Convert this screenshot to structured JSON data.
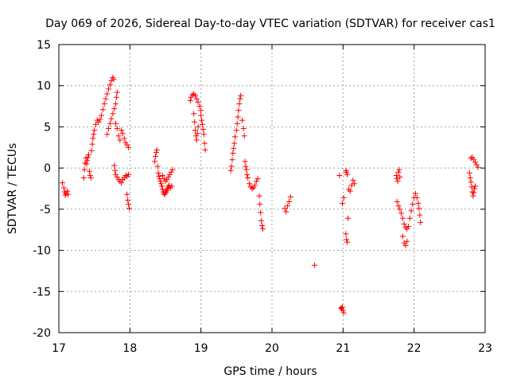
{
  "chart_data": {
    "type": "scatter",
    "title": "Day 069 of 2026, Sidereal Day-to-day VTEC variation (SDTVAR) for receiver cas1",
    "xlabel": "GPS time / hours",
    "ylabel": "SDTVAR / TECUs",
    "xlim": [
      17,
      23
    ],
    "ylim": [
      -20,
      15
    ],
    "xticks": [
      17,
      18,
      19,
      20,
      21,
      22,
      23
    ],
    "yticks": [
      15,
      10,
      5,
      0,
      -5,
      -10,
      -15,
      -20
    ],
    "grid": true,
    "marker": "+",
    "color": "#ff0000",
    "series": [
      {
        "name": "SDTVAR",
        "points": [
          [
            17.05,
            -1.8
          ],
          [
            17.07,
            -2.4
          ],
          [
            17.08,
            -2.9
          ],
          [
            17.09,
            -3.3
          ],
          [
            17.1,
            -3.1
          ],
          [
            17.12,
            -2.8
          ],
          [
            17.13,
            -3.2
          ],
          [
            17.35,
            -1.2
          ],
          [
            17.36,
            -0.2
          ],
          [
            17.37,
            0.6
          ],
          [
            17.38,
            1.2
          ],
          [
            17.39,
            0.5
          ],
          [
            17.4,
            0.9
          ],
          [
            17.41,
            1.3
          ],
          [
            17.42,
            1.6
          ],
          [
            17.43,
            -0.4
          ],
          [
            17.44,
            -0.9
          ],
          [
            17.45,
            -1.2
          ],
          [
            17.46,
            2.1
          ],
          [
            17.47,
            2.9
          ],
          [
            17.48,
            3.6
          ],
          [
            17.49,
            4.1
          ],
          [
            17.5,
            4.6
          ],
          [
            17.52,
            5.3
          ],
          [
            17.54,
            5.8
          ],
          [
            17.56,
            5.6
          ],
          [
            17.58,
            5.9
          ],
          [
            17.6,
            6.4
          ],
          [
            17.62,
            7.1
          ],
          [
            17.64,
            7.8
          ],
          [
            17.66,
            8.4
          ],
          [
            17.68,
            9.0
          ],
          [
            17.7,
            9.6
          ],
          [
            17.72,
            10.1
          ],
          [
            17.74,
            10.6
          ],
          [
            17.76,
            11.0
          ],
          [
            17.77,
            10.8
          ],
          [
            17.68,
            4.1
          ],
          [
            17.7,
            4.8
          ],
          [
            17.72,
            5.4
          ],
          [
            17.74,
            6.0
          ],
          [
            17.76,
            6.6
          ],
          [
            17.78,
            7.2
          ],
          [
            17.8,
            7.8
          ],
          [
            17.81,
            8.6
          ],
          [
            17.82,
            9.2
          ],
          [
            17.78,
            0.3
          ],
          [
            17.79,
            -0.3
          ],
          [
            17.8,
            -0.8
          ],
          [
            17.82,
            -1.1
          ],
          [
            17.84,
            -1.4
          ],
          [
            17.86,
            -1.6
          ],
          [
            17.88,
            -1.8
          ],
          [
            17.9,
            -1.4
          ],
          [
            17.92,
            -1.2
          ],
          [
            17.94,
            -0.9
          ],
          [
            17.96,
            -1.0
          ],
          [
            17.98,
            -0.8
          ],
          [
            17.8,
            5.4
          ],
          [
            17.82,
            4.8
          ],
          [
            17.84,
            3.9
          ],
          [
            17.86,
            3.4
          ],
          [
            17.88,
            4.6
          ],
          [
            17.9,
            4.2
          ],
          [
            17.92,
            3.6
          ],
          [
            17.94,
            3.1
          ],
          [
            17.96,
            2.8
          ],
          [
            17.98,
            2.5
          ],
          [
            17.96,
            -3.2
          ],
          [
            17.97,
            -3.9
          ],
          [
            17.98,
            -4.4
          ],
          [
            17.99,
            -4.9
          ],
          [
            18.35,
            0.8
          ],
          [
            18.36,
            1.4
          ],
          [
            18.37,
            1.9
          ],
          [
            18.38,
            2.2
          ],
          [
            18.39,
            0.2
          ],
          [
            18.4,
            -0.6
          ],
          [
            18.41,
            -1.0
          ],
          [
            18.42,
            -1.3
          ],
          [
            18.43,
            -1.6
          ],
          [
            18.44,
            -1.9
          ],
          [
            18.45,
            -2.2
          ],
          [
            18.46,
            -2.6
          ],
          [
            18.47,
            -2.9
          ],
          [
            18.48,
            -3.1
          ],
          [
            18.49,
            -3.2
          ],
          [
            18.5,
            -3.0
          ],
          [
            18.51,
            -2.9
          ],
          [
            18.52,
            -2.7
          ],
          [
            18.53,
            -2.5
          ],
          [
            18.54,
            -2.3
          ],
          [
            18.55,
            -2.1
          ],
          [
            18.57,
            -2.4
          ],
          [
            18.59,
            -2.2
          ],
          [
            18.46,
            -0.9
          ],
          [
            18.48,
            -1.3
          ],
          [
            18.5,
            -1.6
          ],
          [
            18.52,
            -1.4
          ],
          [
            18.54,
            -1.1
          ],
          [
            18.56,
            -0.8
          ],
          [
            18.58,
            -0.5
          ],
          [
            18.6,
            -0.2
          ],
          [
            18.85,
            8.2
          ],
          [
            18.86,
            8.6
          ],
          [
            18.88,
            8.9
          ],
          [
            18.9,
            9.0
          ],
          [
            18.92,
            8.8
          ],
          [
            18.94,
            8.4
          ],
          [
            18.96,
            8.0
          ],
          [
            18.98,
            7.5
          ],
          [
            19.0,
            7.0
          ],
          [
            18.9,
            6.6
          ],
          [
            18.91,
            5.6
          ],
          [
            18.92,
            4.6
          ],
          [
            18.93,
            3.9
          ],
          [
            18.94,
            3.4
          ],
          [
            18.95,
            4.2
          ],
          [
            18.96,
            5.0
          ],
          [
            19.0,
            6.4
          ],
          [
            19.01,
            5.8
          ],
          [
            19.02,
            5.3
          ],
          [
            19.03,
            4.7
          ],
          [
            19.04,
            4.1
          ],
          [
            19.05,
            3.0
          ],
          [
            19.06,
            2.2
          ],
          [
            19.42,
            -0.3
          ],
          [
            19.43,
            0.2
          ],
          [
            19.44,
            1.0
          ],
          [
            19.45,
            1.8
          ],
          [
            19.46,
            2.4
          ],
          [
            19.47,
            3.0
          ],
          [
            19.48,
            3.8
          ],
          [
            19.5,
            4.6
          ],
          [
            19.51,
            5.4
          ],
          [
            19.52,
            6.2
          ],
          [
            19.53,
            7.0
          ],
          [
            19.54,
            7.8
          ],
          [
            19.55,
            8.4
          ],
          [
            19.56,
            8.8
          ],
          [
            19.58,
            5.8
          ],
          [
            19.6,
            4.8
          ],
          [
            19.61,
            3.9
          ],
          [
            19.62,
            0.8
          ],
          [
            19.63,
            0.2
          ],
          [
            19.64,
            -0.2
          ],
          [
            19.65,
            -0.8
          ],
          [
            19.66,
            -1.2
          ],
          [
            19.68,
            -1.9
          ],
          [
            19.7,
            -2.3
          ],
          [
            19.72,
            -2.5
          ],
          [
            19.74,
            -2.4
          ],
          [
            19.76,
            -2.1
          ],
          [
            19.78,
            -1.6
          ],
          [
            19.8,
            -1.3
          ],
          [
            19.82,
            -3.4
          ],
          [
            19.83,
            -4.4
          ],
          [
            19.84,
            -5.4
          ],
          [
            19.85,
            -6.4
          ],
          [
            19.86,
            -7.0
          ],
          [
            19.87,
            -7.4
          ],
          [
            20.18,
            -4.9
          ],
          [
            20.2,
            -5.3
          ],
          [
            20.22,
            -4.6
          ],
          [
            20.24,
            -4.1
          ],
          [
            20.26,
            -3.5
          ],
          [
            20.6,
            -11.8
          ],
          [
            20.95,
            -0.9
          ],
          [
            20.97,
            -17.0
          ],
          [
            20.98,
            -17.1
          ],
          [
            20.99,
            -16.9
          ],
          [
            21.0,
            -17.3
          ],
          [
            21.01,
            -17.6
          ],
          [
            20.99,
            -4.3
          ],
          [
            21.01,
            -3.6
          ],
          [
            21.04,
            -0.3
          ],
          [
            21.05,
            -0.5
          ],
          [
            21.06,
            -0.8
          ],
          [
            21.04,
            -8.0
          ],
          [
            21.05,
            -8.7
          ],
          [
            21.06,
            -9.0
          ],
          [
            21.07,
            -6.1
          ],
          [
            21.08,
            -2.6
          ],
          [
            21.1,
            -2.8
          ],
          [
            21.12,
            -2.1
          ],
          [
            21.14,
            -1.5
          ],
          [
            21.16,
            -1.9
          ],
          [
            21.75,
            -0.9
          ],
          [
            21.76,
            -1.3
          ],
          [
            21.77,
            -1.6
          ],
          [
            21.78,
            -0.5
          ],
          [
            21.79,
            -0.2
          ],
          [
            21.8,
            -1.1
          ],
          [
            21.76,
            -4.1
          ],
          [
            21.78,
            -4.6
          ],
          [
            21.8,
            -5.0
          ],
          [
            21.82,
            -5.5
          ],
          [
            21.84,
            -6.1
          ],
          [
            21.86,
            -6.8
          ],
          [
            21.88,
            -7.2
          ],
          [
            21.9,
            -7.4
          ],
          [
            21.92,
            -7.1
          ],
          [
            21.84,
            -8.3
          ],
          [
            21.86,
            -9.1
          ],
          [
            21.88,
            -9.4
          ],
          [
            21.9,
            -8.9
          ],
          [
            21.94,
            -6.1
          ],
          [
            21.96,
            -5.2
          ],
          [
            21.98,
            -4.4
          ],
          [
            22.0,
            -3.6
          ],
          [
            22.02,
            -3.1
          ],
          [
            22.04,
            -3.6
          ],
          [
            22.06,
            -4.3
          ],
          [
            22.07,
            -4.9
          ],
          [
            22.08,
            -5.7
          ],
          [
            22.09,
            -6.6
          ],
          [
            22.78,
            -0.6
          ],
          [
            22.79,
            -1.2
          ],
          [
            22.8,
            -1.7
          ],
          [
            22.81,
            -2.3
          ],
          [
            22.82,
            -2.9
          ],
          [
            22.83,
            -3.4
          ],
          [
            22.84,
            -3.0
          ],
          [
            22.85,
            -2.5
          ],
          [
            22.86,
            -2.2
          ],
          [
            22.8,
            1.2
          ],
          [
            22.82,
            1.3
          ],
          [
            22.84,
            1.0
          ],
          [
            22.86,
            0.7
          ],
          [
            22.88,
            0.4
          ],
          [
            22.9,
            0.1
          ]
        ]
      }
    ]
  }
}
